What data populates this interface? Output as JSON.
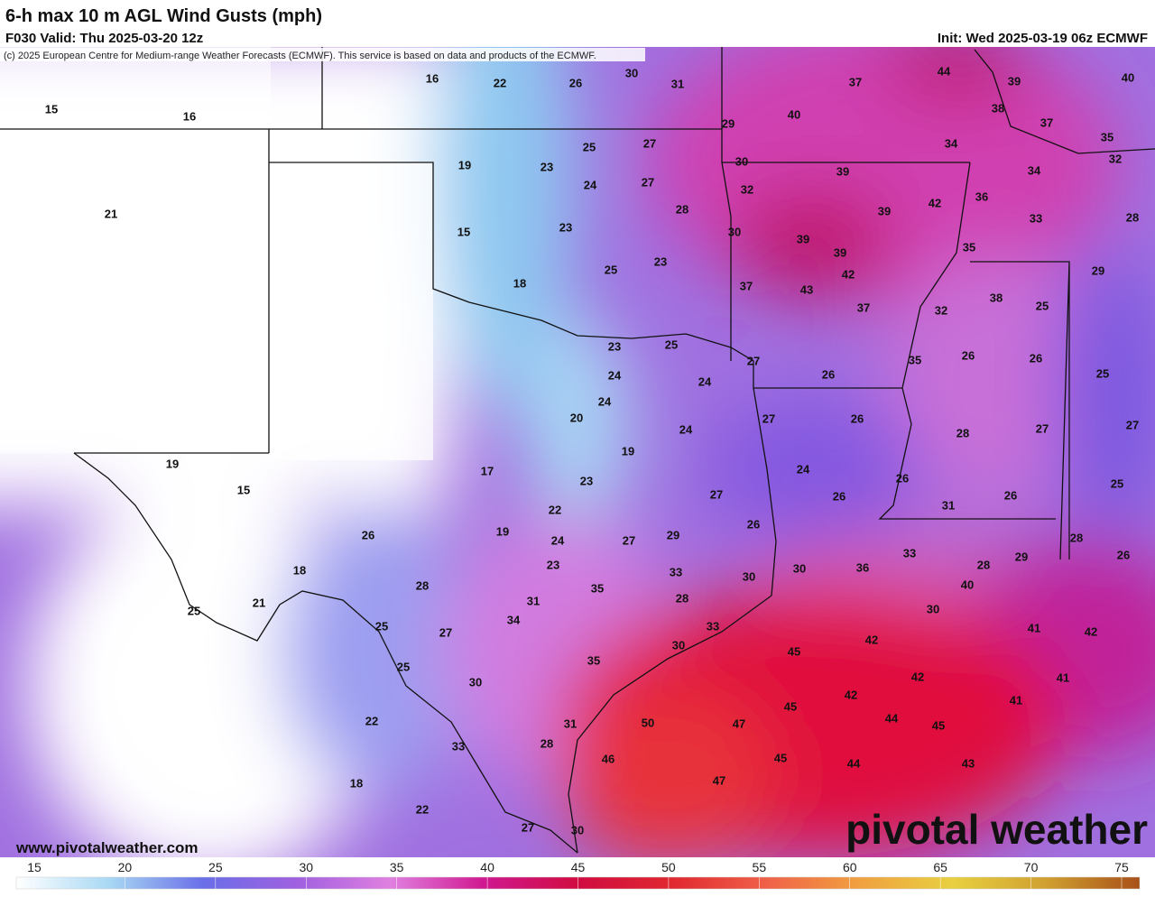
{
  "header": {
    "title": "6-h max 10 m AGL Wind Gusts (mph)",
    "valid": "F030 Valid: Thu 2025-03-20 12z",
    "init": "Init: Wed 2025-03-19 06z ECMWF",
    "copyright": "(c) 2025 European Centre for Medium-range Weather Forecasts (ECMWF). This service is based on data and products of the ECMWF."
  },
  "map": {
    "labels": [
      15,
      16,
      16,
      22,
      26,
      30,
      31,
      29,
      40,
      37,
      44,
      39,
      38,
      37,
      40,
      35,
      34,
      32,
      34,
      30,
      32,
      39,
      42,
      39,
      36,
      33,
      28,
      25,
      27,
      19,
      23,
      24,
      27,
      28,
      15,
      23,
      30,
      39,
      39,
      35,
      29,
      25,
      23,
      18,
      37,
      43,
      42,
      37,
      32,
      38,
      25,
      23,
      25,
      27,
      26,
      35,
      26,
      26,
      25,
      24,
      24,
      24,
      27,
      26,
      20,
      24,
      28,
      27,
      27,
      19,
      19,
      24,
      17,
      23,
      26,
      25,
      15,
      27,
      26,
      31,
      26,
      22,
      26,
      26,
      19,
      24,
      27,
      29,
      33,
      29,
      28,
      18,
      23,
      33,
      30,
      30,
      36,
      28,
      26,
      28,
      35,
      40,
      21,
      31,
      28,
      25,
      34,
      30,
      25,
      27,
      33,
      41,
      42,
      42,
      30,
      45,
      35,
      25,
      42,
      41,
      30,
      42,
      45,
      41,
      22,
      44,
      45,
      50,
      47,
      31,
      33,
      28,
      45,
      44,
      43,
      46,
      18,
      47,
      22,
      27,
      30,
      21
    ]
  },
  "colorbar": {
    "ticks": [
      15,
      20,
      25,
      30,
      35,
      40,
      45,
      50,
      55,
      60,
      65,
      70,
      75
    ]
  },
  "footer": {
    "website": "www.pivotalweather.com",
    "logo": "pivotal weather"
  }
}
